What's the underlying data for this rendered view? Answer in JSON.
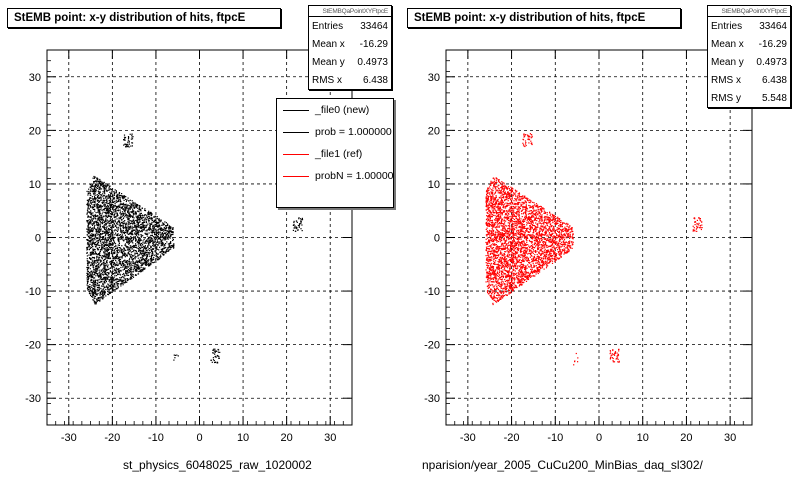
{
  "chart_data": [
    {
      "type": "scatter",
      "title": "StEMB point: x-y distribution of hits, ftpcE",
      "xlabel": "st_physics_6048025_raw_1020002",
      "ylabel": "",
      "xlim": [
        -35,
        35
      ],
      "ylim": [
        -35,
        35
      ],
      "x_ticks": [
        -30,
        -20,
        -10,
        0,
        10,
        20,
        30
      ],
      "y_ticks": [
        -30,
        -20,
        -10,
        0,
        10,
        20,
        30
      ],
      "grid": true,
      "marker_color": "#000000",
      "stats": {
        "name": "StEMBQaPointXYFtpcE",
        "rows": [
          {
            "label": "Entries",
            "value": "33464"
          },
          {
            "label": "Mean x",
            "value": "-16.29"
          },
          {
            "label": "Mean y",
            "value": "0.4973"
          },
          {
            "label": "RMS x",
            "value": "6.438"
          }
        ]
      },
      "legend": {
        "placement": "top-right",
        "entries": [
          {
            "label": "_file0 (new)",
            "color": "#000000"
          },
          {
            "label": "prob = 1.000000",
            "color": "#000000"
          },
          {
            "label": "_file1 (ref)",
            "color": "#ff0000"
          },
          {
            "label": "probN = 1.000000",
            "color": "#ff0000"
          }
        ]
      },
      "clusters": [
        {
          "kind": "fan",
          "x_range": [
            -26,
            -6
          ],
          "y_range": [
            -14,
            13
          ]
        },
        {
          "kind": "blob",
          "center": [
            -16.5,
            18.3
          ]
        },
        {
          "kind": "blob",
          "center": [
            22.5,
            2.5
          ]
        },
        {
          "kind": "blob",
          "center": [
            3.5,
            -22
          ]
        },
        {
          "kind": "blob",
          "center": [
            -5.5,
            -22.5
          ]
        }
      ]
    },
    {
      "type": "scatter",
      "title": "StEMB point: x-y distribution of hits, ftpcE",
      "xlabel": "nparision/year_2005_CuCu200_MinBias_daq_sl302/",
      "ylabel": "",
      "xlim": [
        -35,
        35
      ],
      "ylim": [
        -35,
        35
      ],
      "x_ticks": [
        -30,
        -20,
        -10,
        0,
        10,
        20,
        30
      ],
      "y_ticks": [
        -30,
        -20,
        -10,
        0,
        10,
        20,
        30
      ],
      "grid": true,
      "marker_color": "#ff0000",
      "stats": {
        "name": "StEMBQaPointXYFtpcE",
        "rows": [
          {
            "label": "Entries",
            "value": "33464"
          },
          {
            "label": "Mean x",
            "value": "-16.29"
          },
          {
            "label": "Mean y",
            "value": "0.4973"
          },
          {
            "label": "RMS x",
            "value": "6.438"
          },
          {
            "label": "RMS y",
            "value": "5.548"
          }
        ]
      },
      "clusters": [
        {
          "kind": "fan",
          "x_range": [
            -26,
            -6
          ],
          "y_range": [
            -14,
            13
          ]
        },
        {
          "kind": "blob",
          "center": [
            -16.5,
            18.3
          ]
        },
        {
          "kind": "blob",
          "center": [
            22.5,
            2.5
          ]
        },
        {
          "kind": "blob",
          "center": [
            3.5,
            -22
          ]
        },
        {
          "kind": "blob",
          "center": [
            -5.5,
            -22.5
          ]
        }
      ]
    }
  ]
}
